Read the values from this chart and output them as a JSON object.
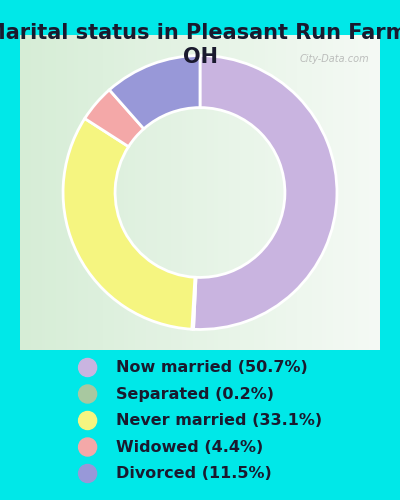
{
  "title": "Marital status in Pleasant Run Farm,\nOH",
  "slices": [
    50.7,
    0.2,
    33.1,
    4.4,
    11.5
  ],
  "labels": [
    "Now married (50.7%)",
    "Separated (0.2%)",
    "Never married (33.1%)",
    "Widowed (4.4%)",
    "Divorced (11.5%)"
  ],
  "colors": [
    "#c9b4e0",
    "#a8c8a0",
    "#f5f580",
    "#f4a8a8",
    "#9898d8"
  ],
  "legend_dot_colors": [
    "#c9b4e0",
    "#a8c8a0",
    "#f5f580",
    "#f4a8a8",
    "#9898d8"
  ],
  "background_color": "#00e8e8",
  "chart_bg_color": "#daeada",
  "title_fontsize": 15,
  "legend_fontsize": 11.5,
  "watermark": "City-Data.com"
}
